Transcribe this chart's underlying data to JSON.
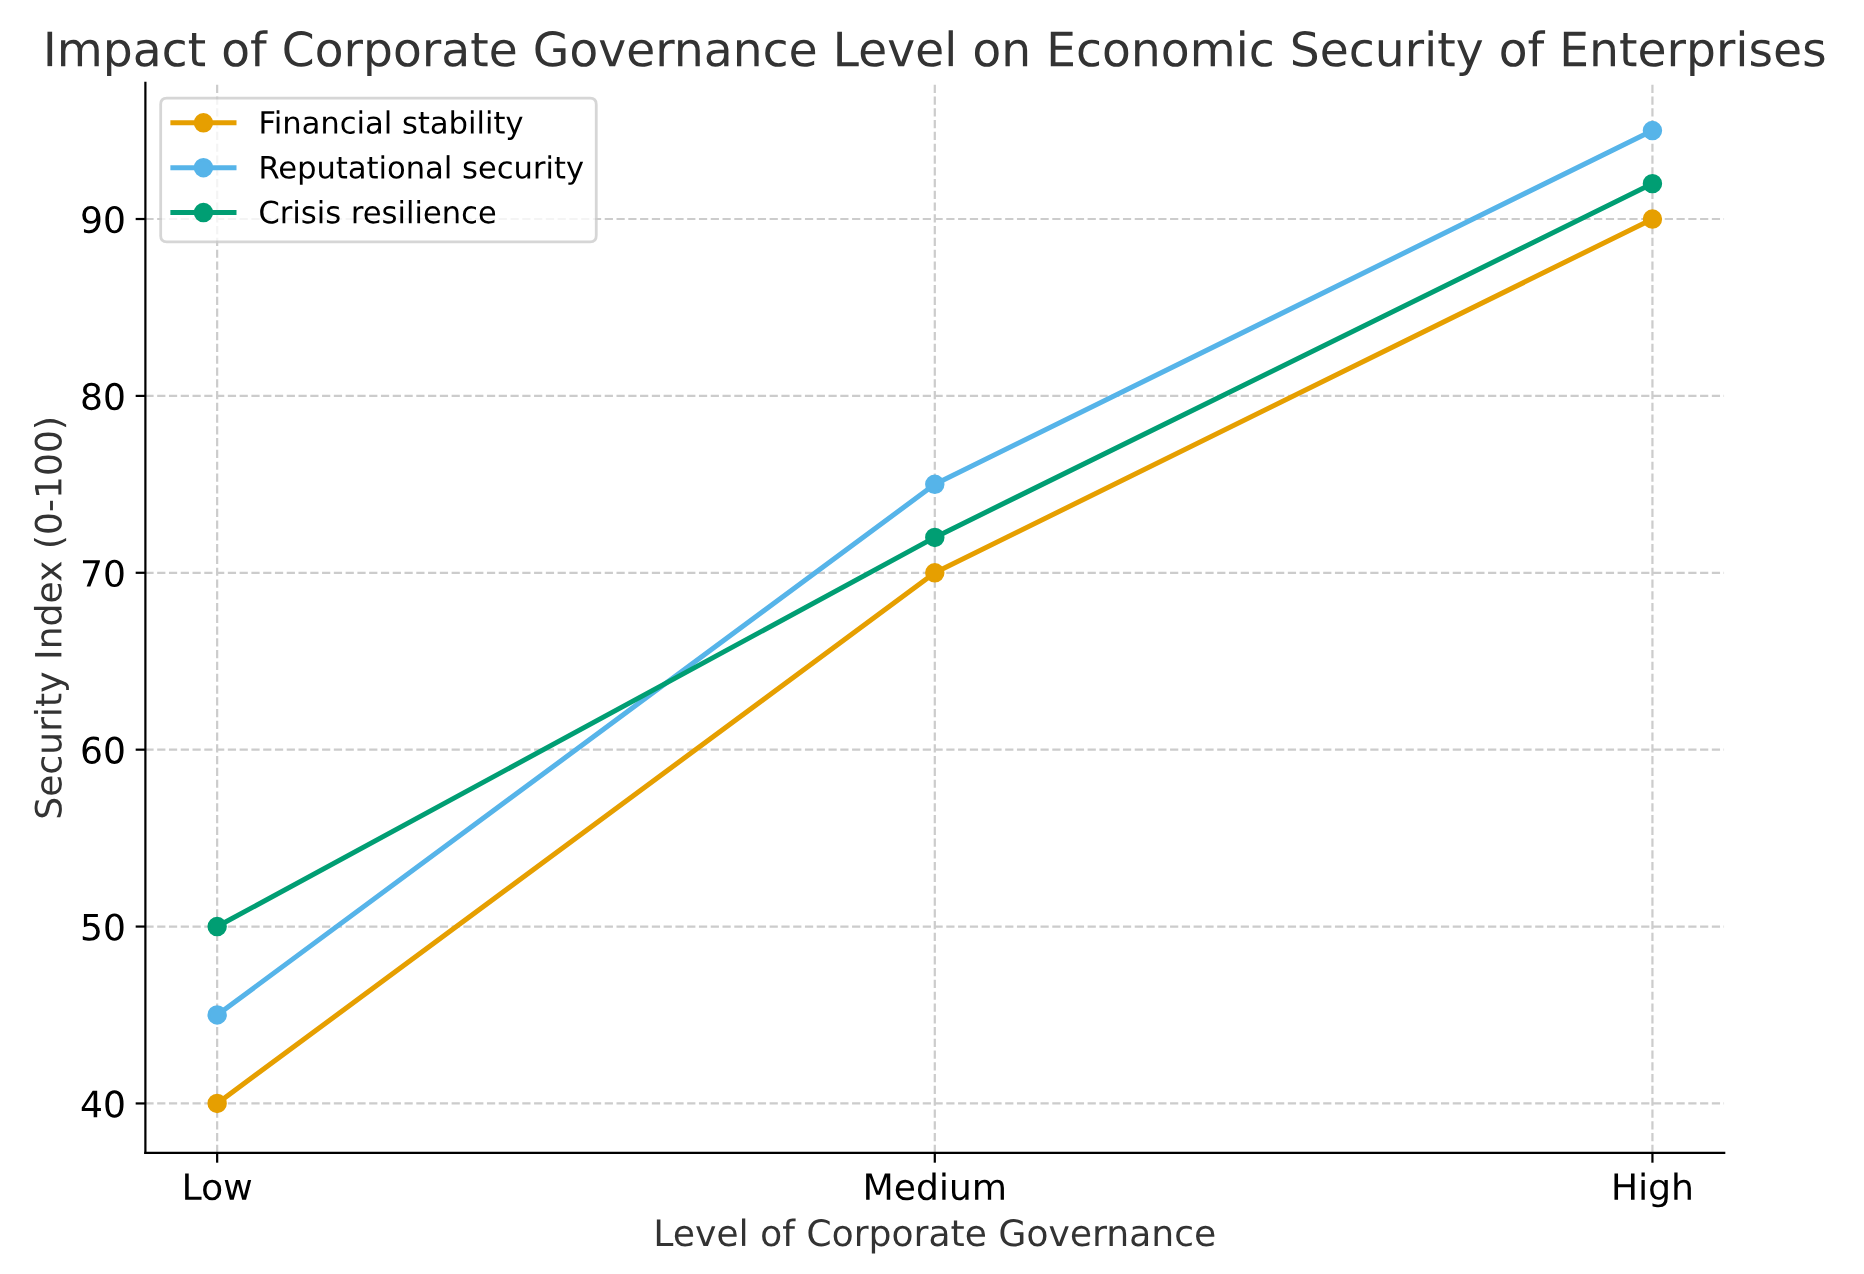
{
  "chart_data": {
    "type": "line",
    "title": "Impact of Corporate Governance Level on Economic Security of Enterprises",
    "xlabel": "Level of Corporate Governance",
    "ylabel": "Security Index (0-100)",
    "categories": [
      "Low",
      "Medium",
      "High"
    ],
    "series": [
      {
        "name": "Financial stability",
        "color": "#e69f00",
        "values": [
          40,
          70,
          90
        ]
      },
      {
        "name": "Reputational security",
        "color": "#56b4e9",
        "values": [
          45,
          75,
          95
        ]
      },
      {
        "name": "Crisis resilience",
        "color": "#009e73",
        "values": [
          50,
          72,
          92
        ]
      }
    ],
    "ylim": [
      37.2,
      97.7
    ],
    "yticks": [
      40,
      50,
      60,
      70,
      80,
      90
    ],
    "grid": true,
    "legend": "top left",
    "marker": "circle",
    "line_style": "solid"
  }
}
